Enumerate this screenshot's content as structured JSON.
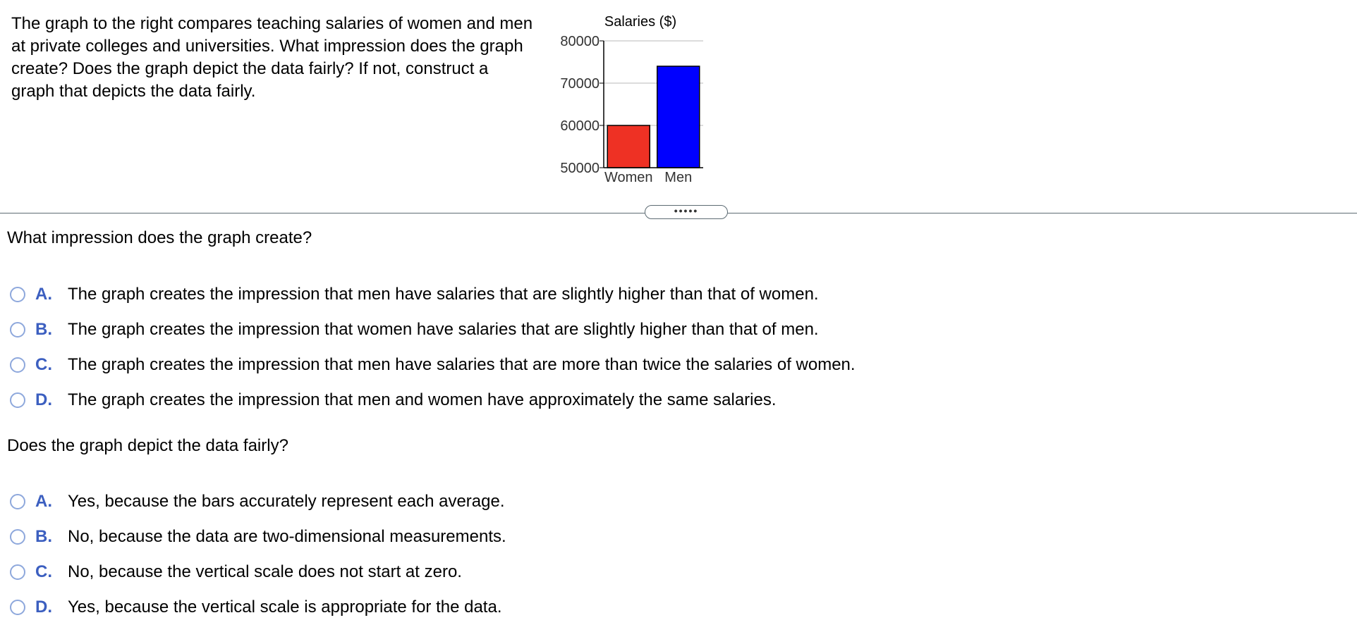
{
  "problem": {
    "text": "The graph to the right compares teaching salaries of women and men at private colleges and universities. What impression does the graph create? Does the graph depict the data fairly? If not, construct a graph that depicts the data fairly."
  },
  "chart_data": {
    "type": "bar",
    "title": "Salaries ($)",
    "categories": [
      "Women",
      "Men"
    ],
    "values": [
      60000,
      74000
    ],
    "colors": [
      "#ee3124",
      "#0000ff"
    ],
    "ylim": [
      50000,
      80000
    ],
    "yticks": [
      "80000",
      "70000",
      "60000",
      "50000"
    ],
    "grid": true,
    "legend": "none"
  },
  "expand_button": {
    "label": "•••••"
  },
  "question1": {
    "prompt": "What impression does the graph create?",
    "options": [
      {
        "letter": "A.",
        "text": "The graph creates the impression that men have salaries that are slightly higher than that of women."
      },
      {
        "letter": "B.",
        "text": "The graph creates the impression that women have salaries that are slightly higher than that of men."
      },
      {
        "letter": "C.",
        "text": "The graph creates the impression that men have salaries that are more than twice the salaries of women."
      },
      {
        "letter": "D.",
        "text": "The graph creates the impression that men and women have approximately the same salaries."
      }
    ]
  },
  "question2": {
    "prompt": "Does the graph depict the data fairly?",
    "options": [
      {
        "letter": "A.",
        "text": "Yes, because the bars accurately represent each average."
      },
      {
        "letter": "B.",
        "text": "No, because the data are two-dimensional measurements."
      },
      {
        "letter": "C.",
        "text": "No, because the vertical scale does not start at zero."
      },
      {
        "letter": "D.",
        "text": "Yes, because the vertical scale is appropriate for the data."
      }
    ]
  },
  "colors": {
    "accent": "#3c5fc0",
    "radio_border": "#8ea8dc",
    "divider": "#5d6b73"
  }
}
